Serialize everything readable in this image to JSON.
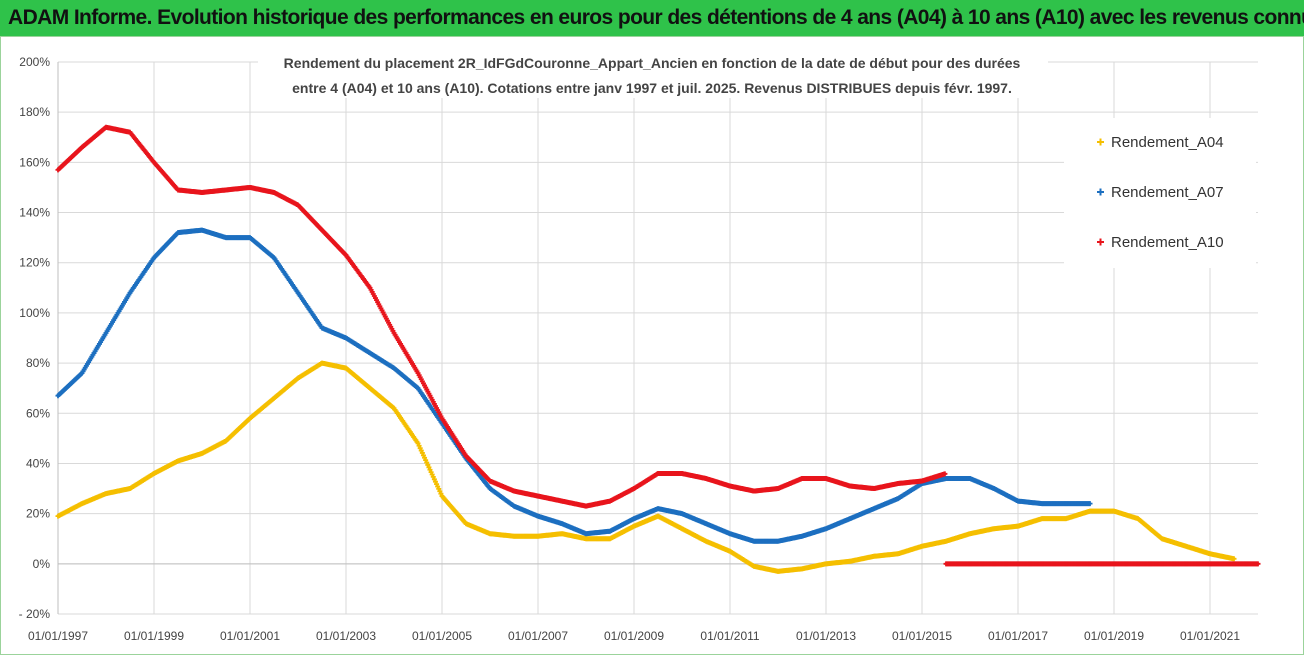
{
  "header": {
    "title": "ADAM Informe. Evolution historique des performances en euros pour des détentions de 4 ans (A04) à 10 ans (A10) avec les revenus connus distribués"
  },
  "chart_data": {
    "type": "scatter",
    "title_lines": [
      "Rendement du placement 2R_IdFGdCouronne_Appart_Ancien en fonction de la date de début pour des durées",
      "entre 4 (A04) et 10 ans (A10).  Cotations entre janv 1997 et juil. 2025. Revenus DISTRIBUES depuis févr. 1997."
    ],
    "xlabel": "",
    "ylabel": "",
    "x_tick_labels": [
      "01/01/1997",
      "01/01/1999",
      "01/01/2001",
      "01/01/2003",
      "01/01/2005",
      "01/01/2007",
      "01/01/2009",
      "01/01/2011",
      "01/01/2013",
      "01/01/2015",
      "01/01/2017",
      "01/01/2019",
      "01/01/2021"
    ],
    "y_tick_labels": [
      "- 20%",
      "0%",
      "20%",
      "40%",
      "60%",
      "80%",
      "100%",
      "120%",
      "140%",
      "160%",
      "180%",
      "200%"
    ],
    "ylim": [
      -20,
      200
    ],
    "xlim": [
      1997.0,
      2022.0
    ],
    "legend_position": "top-right",
    "grid": "vertical and horizontal",
    "series": [
      {
        "name": "Rendement_A04",
        "color": "#f5bf00",
        "points": [
          [
            1997.0,
            19
          ],
          [
            1997.5,
            24
          ],
          [
            1998.0,
            28
          ],
          [
            1998.5,
            30
          ],
          [
            1999.0,
            36
          ],
          [
            1999.5,
            41
          ],
          [
            2000.0,
            44
          ],
          [
            2000.5,
            49
          ],
          [
            2001.0,
            58
          ],
          [
            2001.5,
            66
          ],
          [
            2002.0,
            74
          ],
          [
            2002.5,
            80
          ],
          [
            2003.0,
            78
          ],
          [
            2003.5,
            70
          ],
          [
            2004.0,
            62
          ],
          [
            2004.5,
            48
          ],
          [
            2005.0,
            27
          ],
          [
            2005.5,
            16
          ],
          [
            2006.0,
            12
          ],
          [
            2006.5,
            11
          ],
          [
            2007.0,
            11
          ],
          [
            2007.5,
            12
          ],
          [
            2008.0,
            10
          ],
          [
            2008.5,
            10
          ],
          [
            2009.0,
            15
          ],
          [
            2009.5,
            19
          ],
          [
            2010.0,
            14
          ],
          [
            2010.5,
            9
          ],
          [
            2011.0,
            5
          ],
          [
            2011.5,
            -1
          ],
          [
            2012.0,
            -3
          ],
          [
            2012.5,
            -2
          ],
          [
            2013.0,
            0
          ],
          [
            2013.5,
            1
          ],
          [
            2014.0,
            3
          ],
          [
            2014.5,
            4
          ],
          [
            2015.0,
            7
          ],
          [
            2015.5,
            9
          ],
          [
            2016.0,
            12
          ],
          [
            2016.5,
            14
          ],
          [
            2017.0,
            15
          ],
          [
            2017.5,
            18
          ],
          [
            2018.0,
            18
          ],
          [
            2018.5,
            21
          ],
          [
            2019.0,
            21
          ],
          [
            2019.5,
            18
          ],
          [
            2020.0,
            10
          ],
          [
            2020.5,
            7
          ],
          [
            2021.0,
            4
          ],
          [
            2021.5,
            2
          ]
        ]
      },
      {
        "name": "Rendement_A07",
        "color": "#1c6fc0",
        "points": [
          [
            1997.0,
            67
          ],
          [
            1997.5,
            76
          ],
          [
            1998.0,
            92
          ],
          [
            1998.5,
            108
          ],
          [
            1999.0,
            122
          ],
          [
            1999.5,
            132
          ],
          [
            2000.0,
            133
          ],
          [
            2000.5,
            130
          ],
          [
            2001.0,
            130
          ],
          [
            2001.5,
            122
          ],
          [
            2002.0,
            108
          ],
          [
            2002.5,
            94
          ],
          [
            2003.0,
            90
          ],
          [
            2003.5,
            84
          ],
          [
            2004.0,
            78
          ],
          [
            2004.5,
            70
          ],
          [
            2005.0,
            56
          ],
          [
            2005.5,
            42
          ],
          [
            2006.0,
            30
          ],
          [
            2006.5,
            23
          ],
          [
            2007.0,
            19
          ],
          [
            2007.5,
            16
          ],
          [
            2008.0,
            12
          ],
          [
            2008.5,
            13
          ],
          [
            2009.0,
            18
          ],
          [
            2009.5,
            22
          ],
          [
            2010.0,
            20
          ],
          [
            2010.5,
            16
          ],
          [
            2011.0,
            12
          ],
          [
            2011.5,
            9
          ],
          [
            2012.0,
            9
          ],
          [
            2012.5,
            11
          ],
          [
            2013.0,
            14
          ],
          [
            2013.5,
            18
          ],
          [
            2014.0,
            22
          ],
          [
            2014.5,
            26
          ],
          [
            2015.0,
            32
          ],
          [
            2015.5,
            34
          ],
          [
            2016.0,
            34
          ],
          [
            2016.5,
            30
          ],
          [
            2017.0,
            25
          ],
          [
            2017.5,
            24
          ],
          [
            2018.0,
            24
          ],
          [
            2018.5,
            24
          ]
        ]
      },
      {
        "name": "Rendement_A10",
        "color": "#e8151c",
        "points": [
          [
            1997.0,
            157
          ],
          [
            1997.5,
            166
          ],
          [
            1998.0,
            174
          ],
          [
            1998.5,
            172
          ],
          [
            1999.0,
            160
          ],
          [
            1999.5,
            149
          ],
          [
            2000.0,
            148
          ],
          [
            2000.5,
            149
          ],
          [
            2001.0,
            150
          ],
          [
            2001.5,
            148
          ],
          [
            2002.0,
            143
          ],
          [
            2002.5,
            133
          ],
          [
            2003.0,
            123
          ],
          [
            2003.5,
            110
          ],
          [
            2004.0,
            92
          ],
          [
            2004.5,
            76
          ],
          [
            2005.0,
            58
          ],
          [
            2005.5,
            43
          ],
          [
            2006.0,
            33
          ],
          [
            2006.5,
            29
          ],
          [
            2007.0,
            27
          ],
          [
            2007.5,
            25
          ],
          [
            2008.0,
            23
          ],
          [
            2008.5,
            25
          ],
          [
            2009.0,
            30
          ],
          [
            2009.5,
            36
          ],
          [
            2010.0,
            36
          ],
          [
            2010.5,
            34
          ],
          [
            2011.0,
            31
          ],
          [
            2011.5,
            29
          ],
          [
            2012.0,
            30
          ],
          [
            2012.5,
            34
          ],
          [
            2013.0,
            34
          ],
          [
            2013.5,
            31
          ],
          [
            2014.0,
            30
          ],
          [
            2014.5,
            32
          ],
          [
            2015.0,
            33
          ],
          [
            2015.5,
            36
          ],
          [
            2015.5,
            0
          ],
          [
            2016.0,
            0
          ],
          [
            2016.5,
            0
          ],
          [
            2017.0,
            0
          ],
          [
            2017.5,
            0
          ],
          [
            2018.0,
            0
          ],
          [
            2018.5,
            0
          ],
          [
            2019.0,
            0
          ],
          [
            2019.5,
            0
          ],
          [
            2020.0,
            0
          ],
          [
            2020.5,
            0
          ],
          [
            2021.0,
            0
          ],
          [
            2021.5,
            0
          ],
          [
            2022.0,
            0
          ]
        ]
      }
    ]
  }
}
